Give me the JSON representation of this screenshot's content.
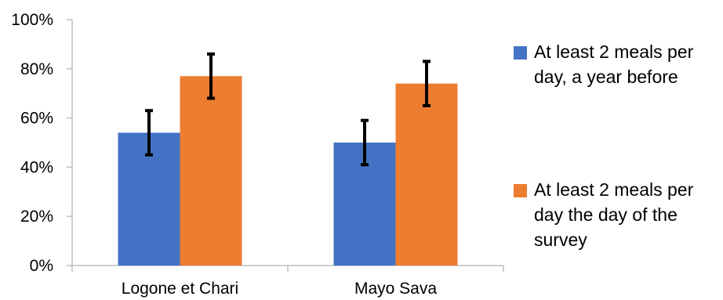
{
  "chart_data": {
    "type": "bar",
    "categories": [
      "Logone et Chari",
      "Mayo Sava"
    ],
    "series": [
      {
        "name": "At least 2 meals per day, a year before",
        "legend_lines": [
          "At least 2 meals per",
          "day, a year before"
        ],
        "color": "#4472C4",
        "values": [
          54,
          50
        ],
        "error": [
          9,
          9
        ]
      },
      {
        "name": "At least 2 meals per day the day of the survey",
        "legend_lines": [
          "At least 2 meals per",
          "day  the day of the",
          "survey"
        ],
        "color": "#ED7D31",
        "values": [
          77,
          74
        ],
        "error": [
          9,
          9
        ]
      }
    ],
    "yticks": [
      "0%",
      "20%",
      "40%",
      "60%",
      "80%",
      "100%"
    ],
    "ylim": [
      0,
      100
    ],
    "unit": "%",
    "grid": false,
    "legend_position": "right"
  }
}
